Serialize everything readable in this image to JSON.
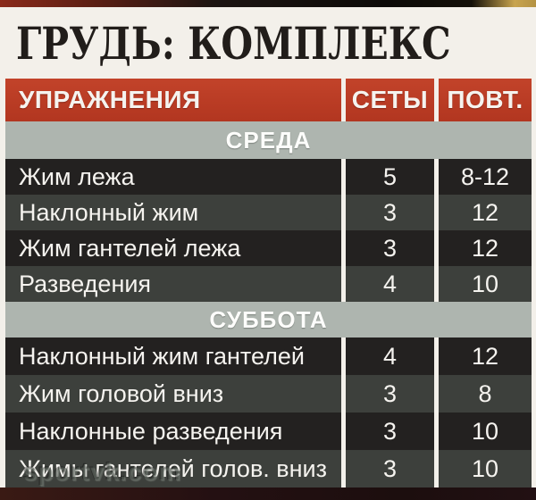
{
  "page": {
    "title": "ГРУДЬ: КОМПЛЕКС",
    "watermark": "sportvk.com"
  },
  "table": {
    "columns": [
      "УПРАЖНЕНИЯ",
      "СЕТЫ",
      "ПОВТ."
    ],
    "sections": [
      {
        "day": "СРЕДА",
        "rows": [
          {
            "exercise": "Жим лежа",
            "sets": "5",
            "reps": "8-12"
          },
          {
            "exercise": "Наклонный жим",
            "sets": "3",
            "reps": "12"
          },
          {
            "exercise": "Жим гантелей лежа",
            "sets": "3",
            "reps": "12"
          },
          {
            "exercise": "Разведения",
            "sets": "4",
            "reps": "10"
          }
        ]
      },
      {
        "day": "СУББОТА",
        "rows": [
          {
            "exercise": "Наклонный жим гантелей",
            "sets": "4",
            "reps": "12"
          },
          {
            "exercise": "Жим головой вниз",
            "sets": "3",
            "reps": "8"
          },
          {
            "exercise": "Наклонные разведения",
            "sets": "3",
            "reps": "10"
          },
          {
            "exercise": "Жимы гантелей голов. вниз",
            "sets": "3",
            "reps": "10"
          }
        ]
      }
    ]
  },
  "colors": {
    "header_red": "#bb3b22",
    "section_gray": "#aeb5af",
    "row_dark": "#232120",
    "row_medium": "#3d403c",
    "page_bg": "#f3f0ea",
    "text_white": "#f5f3ef",
    "title_black": "#211d1a",
    "bottom_strip": "#241012"
  }
}
